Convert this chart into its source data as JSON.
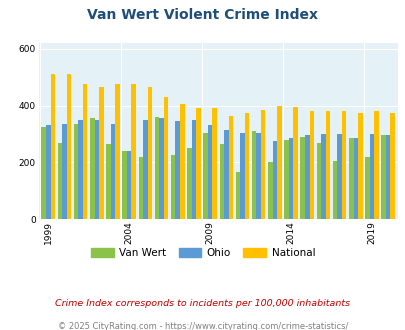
{
  "title": "Van Wert Violent Crime Index",
  "years": [
    1999,
    2000,
    2001,
    2002,
    2003,
    2004,
    2005,
    2006,
    2007,
    2008,
    2009,
    2010,
    2011,
    2012,
    2013,
    2014,
    2015,
    2016,
    2017,
    2018,
    2019,
    2020
  ],
  "van_wert": [
    325,
    270,
    335,
    355,
    265,
    240,
    220,
    360,
    225,
    250,
    305,
    265,
    165,
    310,
    200,
    280,
    290,
    270,
    205,
    285,
    220,
    295
  ],
  "ohio": [
    330,
    335,
    350,
    350,
    335,
    240,
    350,
    355,
    345,
    350,
    330,
    315,
    305,
    305,
    275,
    285,
    295,
    300,
    300,
    285,
    300,
    295
  ],
  "national": [
    510,
    510,
    475,
    465,
    475,
    475,
    465,
    430,
    405,
    390,
    390,
    365,
    375,
    385,
    400,
    395,
    380,
    380,
    380,
    375,
    380,
    375
  ],
  "bar_colors": [
    "#8bc34a",
    "#5b9bd5",
    "#ffc000"
  ],
  "bg_color": "#e4f1f7",
  "ylim": [
    0,
    620
  ],
  "yticks": [
    0,
    200,
    400,
    600
  ],
  "xtick_years": [
    1999,
    2004,
    2009,
    2014,
    2019
  ],
  "legend_labels": [
    "Van Wert",
    "Ohio",
    "National"
  ],
  "footnote1": "Crime Index corresponds to incidents per 100,000 inhabitants",
  "footnote2": "© 2025 CityRating.com - https://www.cityrating.com/crime-statistics/",
  "title_color": "#1f4e79",
  "footnote1_color": "#c00000",
  "footnote2_color": "#808080",
  "grid_color": "#ffffff"
}
